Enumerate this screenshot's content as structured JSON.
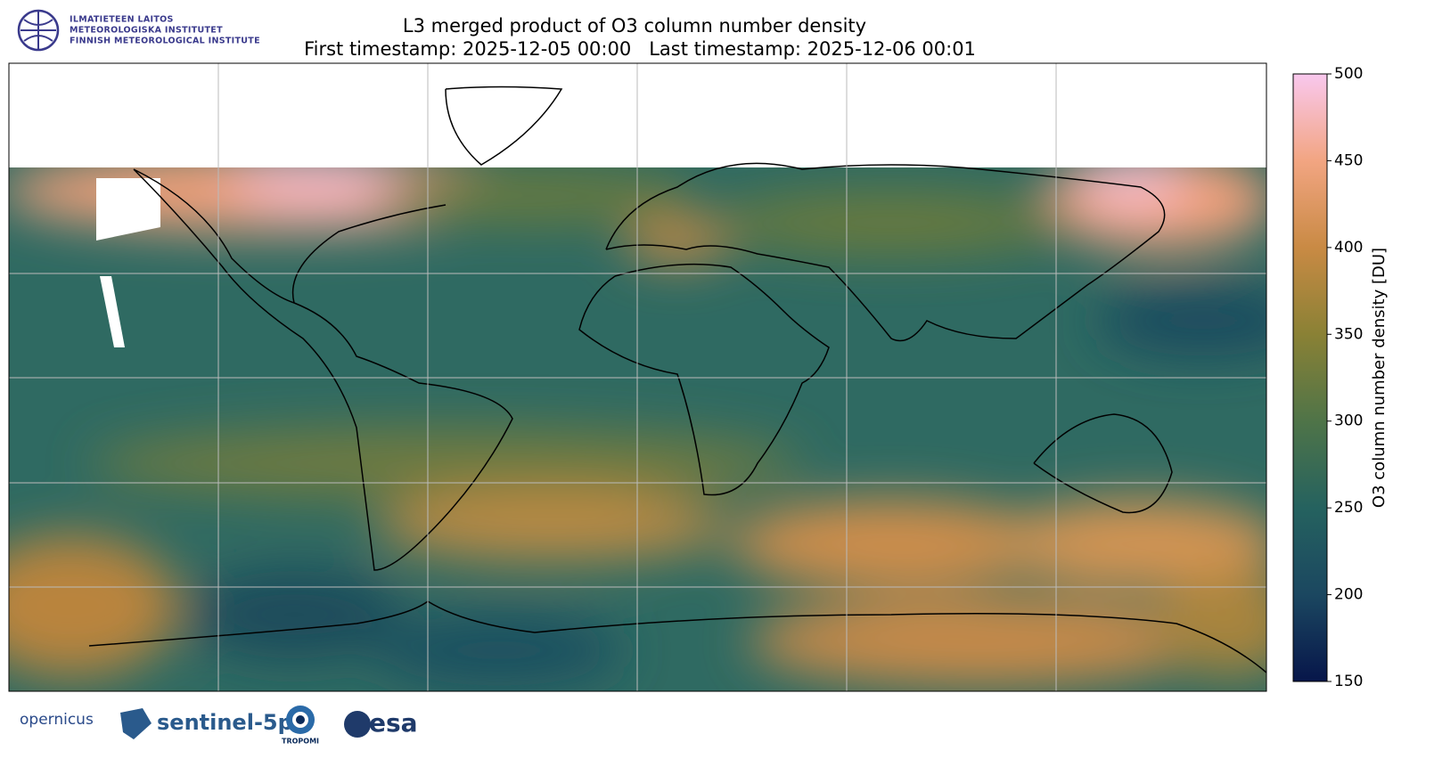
{
  "header": {
    "title": "L3 merged product of O3 column number density",
    "subtitle": "First timestamp: 2025-12-05 00:00   Last timestamp: 2025-12-06 00:01",
    "institute": [
      "ILMATIETEEN LAITOS",
      "METEOROLOGISKA INSTITUTET",
      "FINNISH METEOROLOGICAL INSTITUTE"
    ]
  },
  "colorbar": {
    "label": "O3 column number density [DU]",
    "lim": [
      150,
      500
    ],
    "ticks": [
      150,
      200,
      250,
      300,
      350,
      400,
      450,
      500
    ],
    "colors": [
      "#07164a",
      "#1b4760",
      "#25625f",
      "#4f7448",
      "#8a8135",
      "#c98a44",
      "#f2a582",
      "#f9c8ee"
    ]
  },
  "footer": {
    "logos": [
      "opernicus",
      "sentinel-5p",
      "TROPOMI",
      "esa"
    ]
  }
}
